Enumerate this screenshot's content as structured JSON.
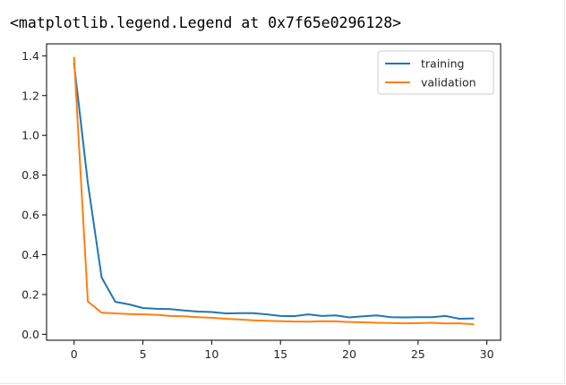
{
  "output_text": "<matplotlib.legend.Legend at 0x7f65e0296128>",
  "chart_data": {
    "type": "line",
    "title": "",
    "xlabel": "",
    "ylabel": "",
    "xlim": [
      -2,
      31
    ],
    "ylim": [
      -0.03,
      1.46
    ],
    "x_ticks": [
      0,
      5,
      10,
      15,
      20,
      25,
      30
    ],
    "y_ticks": [
      0.0,
      0.2,
      0.4,
      0.6,
      0.8,
      1.0,
      1.2,
      1.4
    ],
    "y_tick_labels": [
      "0.0",
      "0.2",
      "0.4",
      "0.6",
      "0.8",
      "1.0",
      "1.2",
      "1.4"
    ],
    "grid": false,
    "legend_position": "top-right",
    "x": [
      0,
      1,
      2,
      3,
      4,
      5,
      6,
      7,
      8,
      9,
      10,
      11,
      12,
      13,
      14,
      15,
      16,
      17,
      18,
      19,
      20,
      21,
      22,
      23,
      24,
      25,
      26,
      27,
      28,
      29
    ],
    "series": [
      {
        "name": "training",
        "color": "#1f77b4",
        "values": [
          1.36,
          0.76,
          0.285,
          0.163,
          0.15,
          0.132,
          0.128,
          0.126,
          0.12,
          0.114,
          0.112,
          0.105,
          0.106,
          0.106,
          0.1,
          0.092,
          0.091,
          0.1,
          0.092,
          0.095,
          0.085,
          0.09,
          0.095,
          0.086,
          0.085,
          0.086,
          0.086,
          0.092,
          0.078,
          0.08
        ]
      },
      {
        "name": "validation",
        "color": "#ff7f0e",
        "values": [
          1.39,
          0.165,
          0.108,
          0.105,
          0.102,
          0.1,
          0.098,
          0.092,
          0.09,
          0.086,
          0.083,
          0.078,
          0.075,
          0.07,
          0.068,
          0.066,
          0.064,
          0.063,
          0.066,
          0.065,
          0.062,
          0.06,
          0.058,
          0.057,
          0.055,
          0.056,
          0.058,
          0.054,
          0.055,
          0.05
        ]
      }
    ]
  }
}
